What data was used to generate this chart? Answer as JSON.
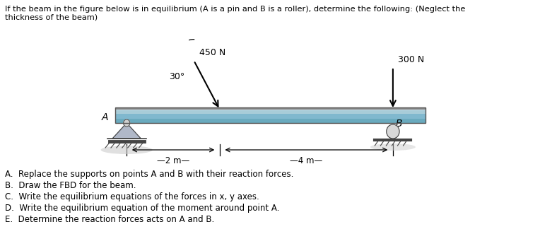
{
  "title_text": "If the beam in the figure below is in equilibrium (A is a pin and B is a roller), determine the following: (Neglect the\nthickness of the beam)",
  "questions": [
    "A.  Replace the supports on points A and B with their reaction forces.",
    "B.  Draw the FBD for the beam.",
    "C.  Write the equilibrium equations of the forces in x, y axes.",
    "D.  Write the equilibrium equation of the moment around point A.",
    "E.  Determine the reaction forces acts on A and B."
  ],
  "background_color": "#ffffff",
  "force_450_label": "450 N",
  "force_300_label": "300 N",
  "angle_label": "30°",
  "dim_2m": "−2 m—",
  "dim_4m": "−4 m—",
  "label_A": "A",
  "label_B": "B"
}
